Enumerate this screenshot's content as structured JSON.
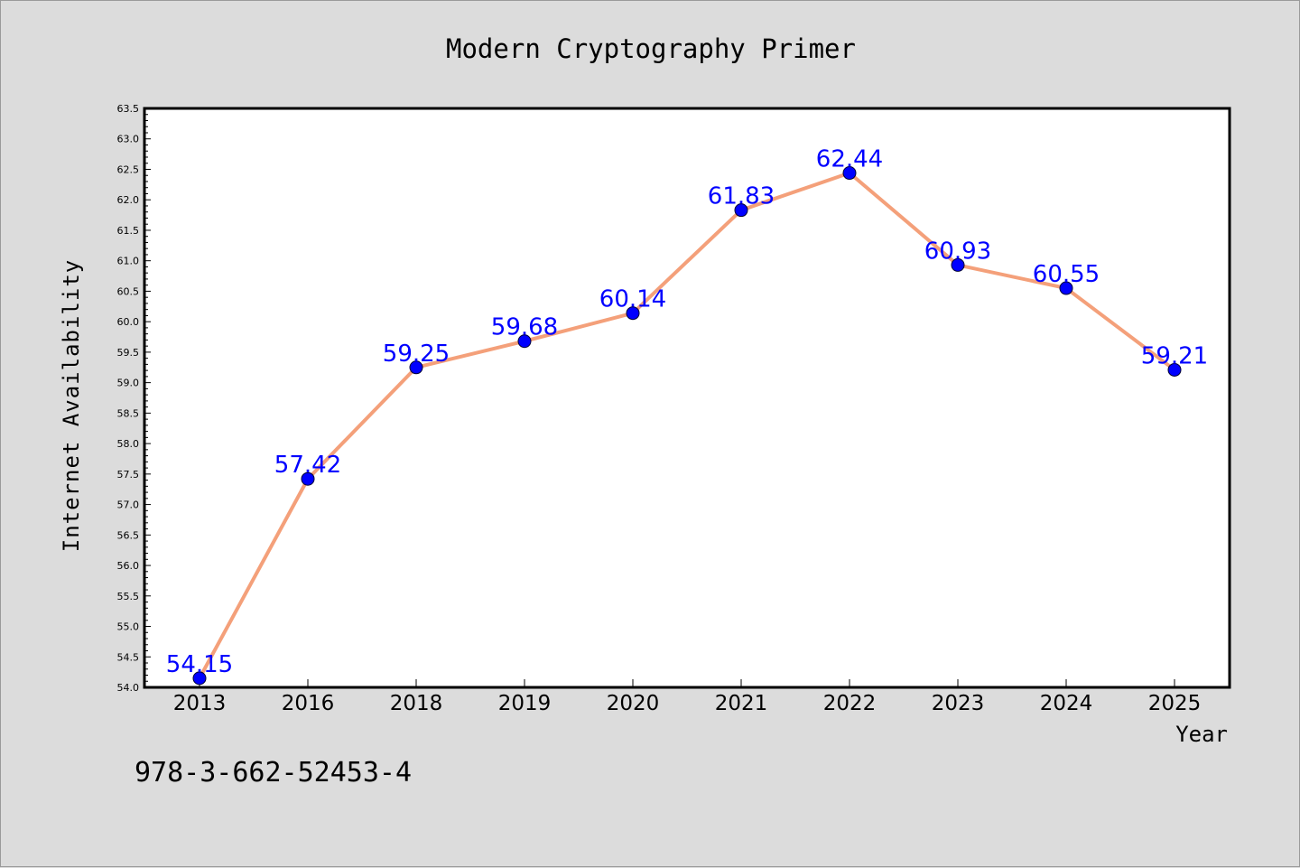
{
  "footer_text": "978-3-662-52453-4",
  "colors": {
    "background": "#dcdcdc",
    "plot_background": "#ffffff",
    "line": "#f4a07a",
    "marker": "#0000ff",
    "data_label": "#0000ff"
  },
  "chart_data": {
    "type": "line",
    "title": "Modern Cryptography Primer",
    "xlabel": "Year",
    "ylabel": "Internet Availability",
    "categories": [
      "2013",
      "2016",
      "2018",
      "2019",
      "2020",
      "2021",
      "2022",
      "2023",
      "2024",
      "2025"
    ],
    "series": [
      {
        "values": [
          54.15,
          57.42,
          59.25,
          59.68,
          60.14,
          61.83,
          62.44,
          60.93,
          60.55,
          59.21
        ],
        "data_labels": [
          "54.15",
          "57.42",
          "59.25",
          "59.68",
          "60.14",
          "61.83",
          "62.44",
          "60.93",
          "60.55",
          "59.21"
        ]
      }
    ],
    "ylim": [
      54.0,
      63.5
    ],
    "yticks": [
      "54.0",
      "54.5",
      "55.0",
      "55.5",
      "56.0",
      "56.5",
      "57.0",
      "57.5",
      "58.0",
      "58.5",
      "59.0",
      "59.5",
      "60.0",
      "60.5",
      "61.0",
      "61.5",
      "62.0",
      "62.5",
      "63.0",
      "63.5"
    ],
    "grid": false,
    "legend": "none"
  }
}
